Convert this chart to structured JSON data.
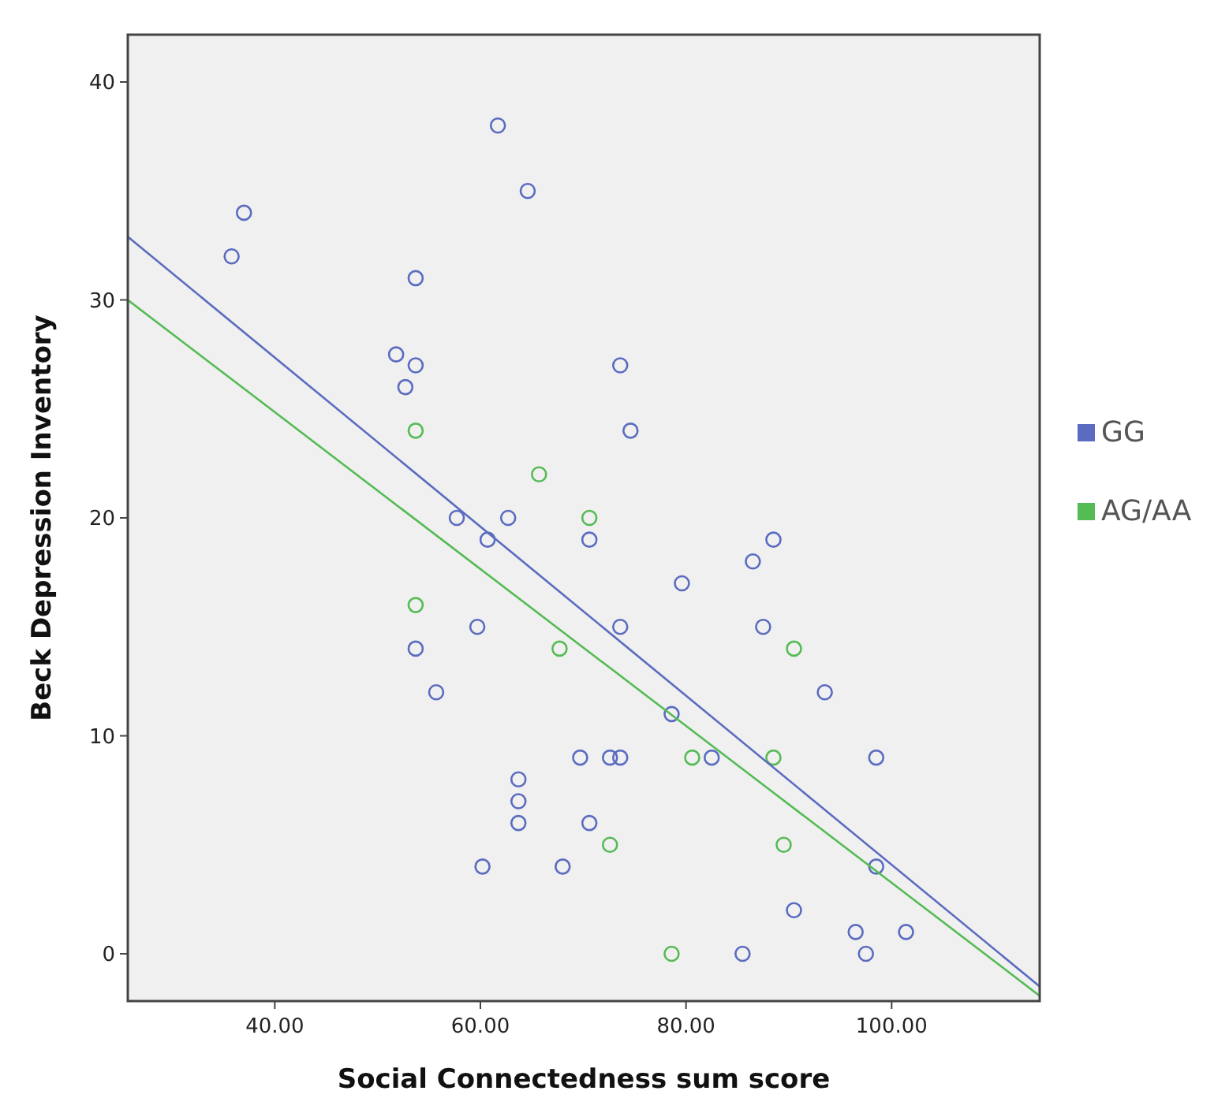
{
  "chart_data": {
    "type": "scatter",
    "xlabel": "Social Connectedness sum score",
    "ylabel": "Beck Depression Inventory",
    "xlim": [
      25.7,
      114.4
    ],
    "ylim": [
      -2.17,
      42.17
    ],
    "xticks": [
      {
        "value": 40,
        "label": "40.00"
      },
      {
        "value": 60,
        "label": "60.00"
      },
      {
        "value": 80,
        "label": "80.00"
      },
      {
        "value": 100,
        "label": "100.00"
      }
    ],
    "yticks": [
      0,
      10,
      20,
      30,
      40
    ],
    "grid": false,
    "legend": "right",
    "marker": "circle",
    "series": [
      {
        "name": "GG",
        "color": "#5b6cc0",
        "x": [
          35.8,
          37,
          61.7,
          64.6,
          53.7,
          51.8,
          53.7,
          52.7,
          57.7,
          62.7,
          60.7,
          70.6,
          73.6,
          74.6,
          59.7,
          53.7,
          55.7,
          69.7,
          63.7,
          63.7,
          63.7,
          60.2,
          68,
          70.6,
          88.5,
          86.5,
          79.6,
          73.6,
          87.5,
          93.5,
          78.6,
          72.6,
          73.6,
          82.5,
          98.5,
          98.5,
          90.5,
          96.5,
          101.4,
          97.5,
          85.5
        ],
        "values": [
          32,
          34,
          38,
          35,
          31,
          27.5,
          27,
          26,
          20,
          20,
          19,
          19,
          27,
          24,
          15,
          14,
          12,
          9,
          8,
          7,
          6,
          4,
          4,
          6,
          19,
          18,
          17,
          15,
          15,
          12,
          11,
          9,
          9,
          9,
          9,
          4,
          2,
          1,
          1,
          0,
          0
        ]
      },
      {
        "name": "AG/AA",
        "color": "#55bb55",
        "x": [
          53.7,
          65.7,
          70.6,
          53.7,
          67.7,
          90.5,
          80.6,
          88.5,
          72.6,
          89.5,
          78.6
        ],
        "values": [
          24,
          22,
          20,
          16,
          14,
          14,
          9,
          9,
          5,
          5,
          0
        ]
      },
      {
        "color": "#5b6cc0",
        "type": "line",
        "marker": "none",
        "x": [
          25.7,
          114.4
        ],
        "values": [
          32.9,
          -1.5
        ]
      },
      {
        "color": "#55bb55",
        "type": "line",
        "marker": "none",
        "x": [
          25.7,
          114.4
        ],
        "values": [
          30.0,
          -1.93
        ]
      }
    ]
  }
}
